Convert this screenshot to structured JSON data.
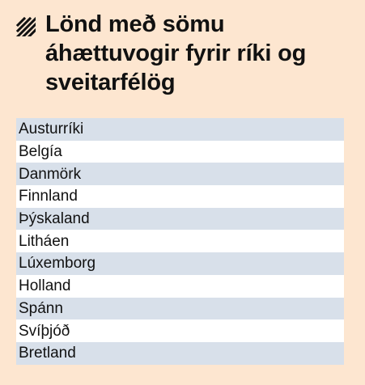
{
  "header": {
    "icon": "diagonal-hatch-icon",
    "title": "Lönd með sömu áhættuvogir fyrir ríki og sveitarfélög"
  },
  "colors": {
    "background": "#fde6d0",
    "row_shaded": "#d8e0ea",
    "row_plain": "#ffffff",
    "text": "#111111"
  },
  "countries": [
    "Austurríki",
    "Belgía",
    "Danmörk",
    "Finnland",
    "Þýskaland",
    "Litháen",
    "Lúxemborg",
    "Holland",
    "Spánn",
    "Svíþjóð",
    "Bretland"
  ]
}
